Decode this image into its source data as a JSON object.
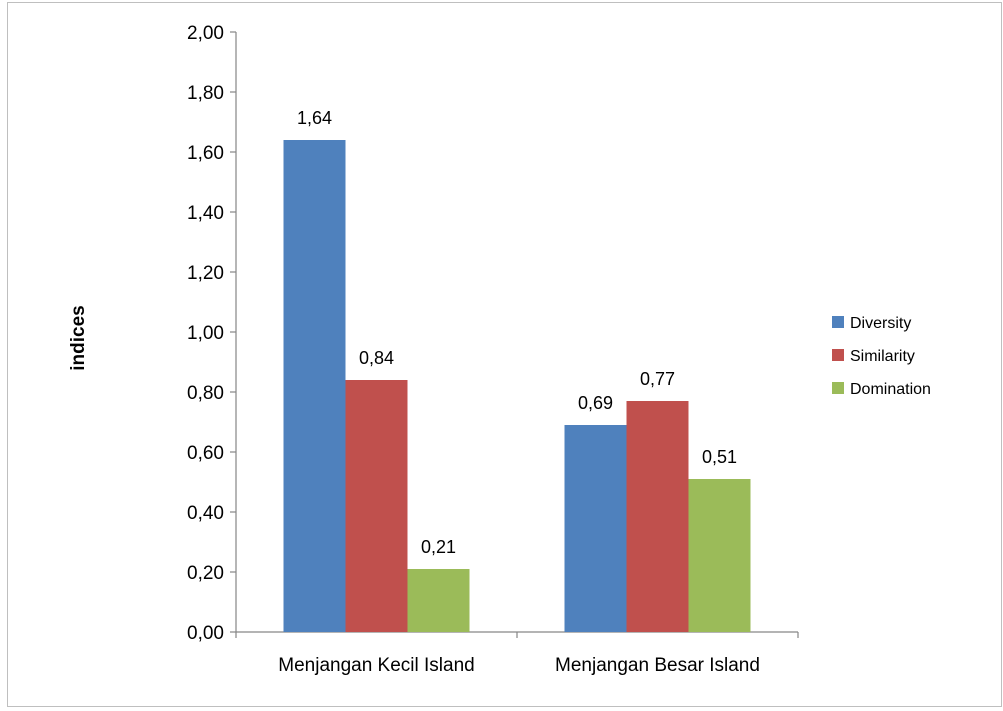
{
  "chart_data": {
    "type": "bar",
    "categories": [
      "Menjangan Kecil Island",
      "Menjangan Besar Island"
    ],
    "series": [
      {
        "name": "Diversity",
        "values": [
          1.64,
          0.69
        ],
        "labels": [
          "1,64",
          "0,69"
        ],
        "color": "#4f81bd"
      },
      {
        "name": "Similarity",
        "values": [
          0.84,
          0.77
        ],
        "labels": [
          "0,84",
          "0,77"
        ],
        "color": "#c0504d"
      },
      {
        "name": "Domination",
        "values": [
          0.21,
          0.51
        ],
        "labels": [
          "0,21",
          "0,51"
        ],
        "color": "#9bbb59"
      }
    ],
    "title": "",
    "xlabel": "",
    "ylabel": "indices",
    "ylim": [
      0,
      2
    ],
    "yticks": [
      0,
      0.2,
      0.4,
      0.6,
      0.8,
      1.0,
      1.2,
      1.4,
      1.6,
      1.8,
      2.0
    ],
    "ytick_labels": [
      "0,00",
      "0,20",
      "0,40",
      "0,60",
      "0,80",
      "1,00",
      "1,20",
      "1,40",
      "1,60",
      "1,80",
      "2,00"
    ],
    "grid": false,
    "legend_position": "right"
  }
}
